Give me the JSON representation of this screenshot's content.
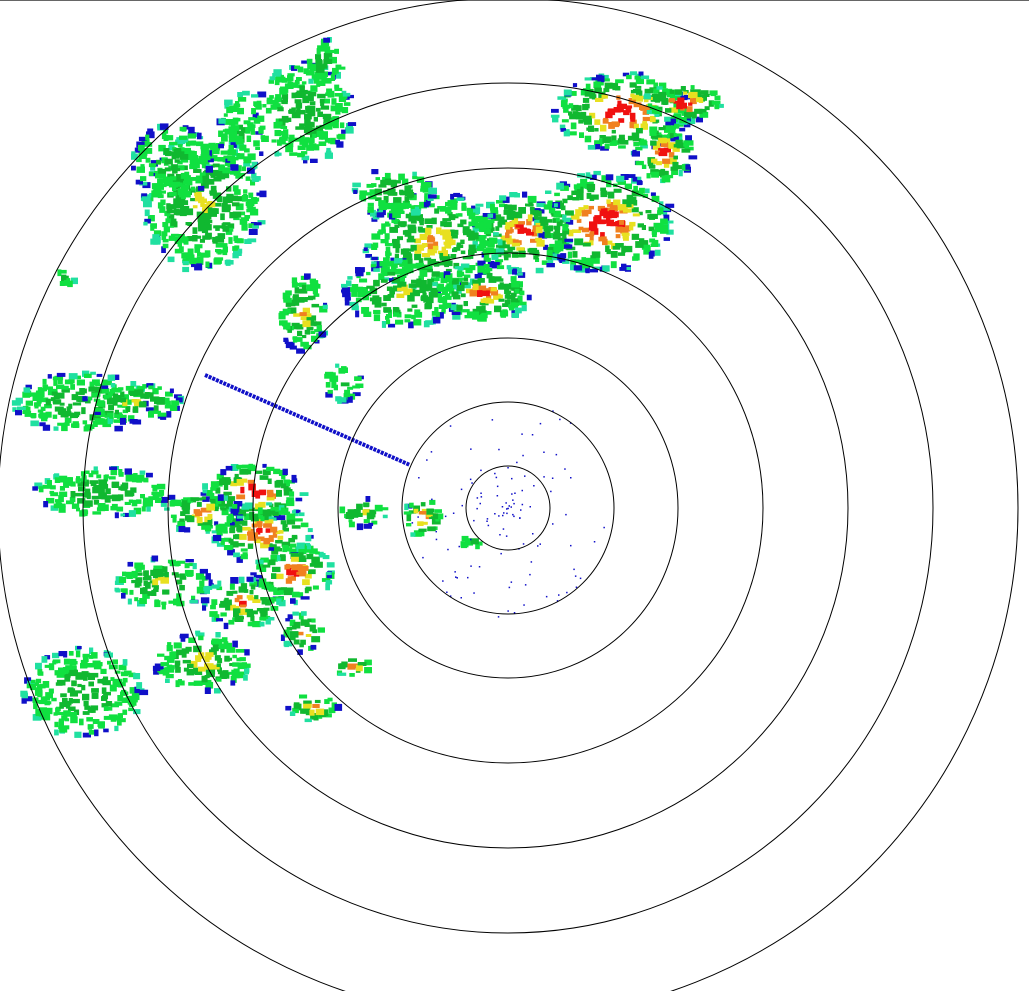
{
  "radar": {
    "type": "ppi-reflectivity",
    "range_ring_count": 7,
    "ring_color": "#000000",
    "background": "#ffffff",
    "palette": {
      "very_light": "#1010c8",
      "light_cyan": "#20e0a0",
      "light_green": "#10e040",
      "green": "#10b830",
      "yellow": "#e8e020",
      "orange": "#f08020",
      "red": "#f01010"
    }
  }
}
